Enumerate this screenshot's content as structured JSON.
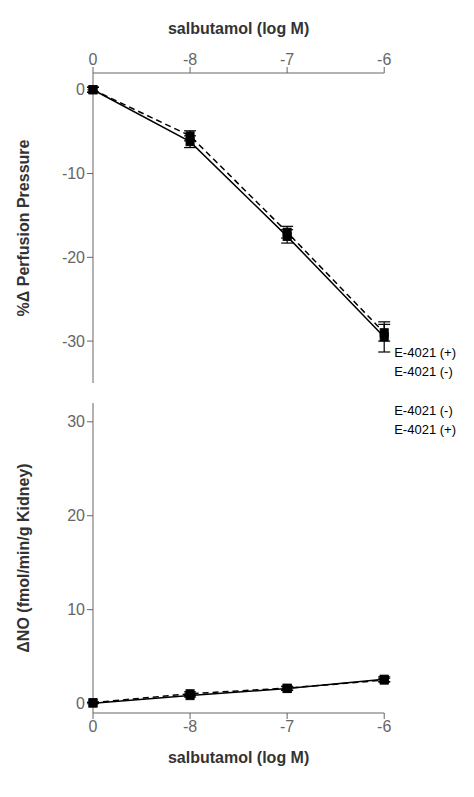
{
  "chart_data": [
    {
      "type": "line",
      "xlabel": "salbutamol (log M)",
      "ylabel": "%Δ Perfusion Pressure",
      "categories": [
        "0",
        "-8",
        "-7",
        "-6"
      ],
      "ylim": [
        -35,
        2
      ],
      "yticks": [
        0,
        -10,
        -20,
        -30
      ],
      "grid": false,
      "legend": "lower right",
      "series": [
        {
          "name": "E-4021 (+)",
          "color": "#000000",
          "line_style": "solid",
          "marker": "square",
          "values": [
            0,
            -6.2,
            -17.5,
            -29.5
          ],
          "yerr": [
            0.3,
            0.7,
            0.8,
            1.8
          ]
        },
        {
          "name": "E-4021 (-)",
          "color": "#000000",
          "line_style": "dashed",
          "marker": "square",
          "values": [
            0,
            -5.5,
            -17.0,
            -29.0
          ],
          "yerr": [
            0.3,
            0.6,
            0.7,
            1.0
          ]
        }
      ]
    },
    {
      "type": "line",
      "xlabel": "salbutamol (log M)",
      "ylabel": "ΔNO (fmol/min/g Kidney)",
      "categories": [
        "0",
        "-8",
        "-7",
        "-6"
      ],
      "ylim": [
        -1,
        32
      ],
      "yticks": [
        0,
        10,
        20,
        30
      ],
      "grid": false,
      "legend": "upper right",
      "series": [
        {
          "name": "E-4021 (-)",
          "color": "#000000",
          "line_style": "dashed",
          "marker": "square",
          "values": [
            0.1,
            1.05,
            1.65,
            2.5
          ],
          "yerr": [
            0.05,
            0.2,
            0.2,
            0.2
          ]
        },
        {
          "name": "E-4021 (+)",
          "color": "#000000",
          "line_style": "solid",
          "marker": "square",
          "values": [
            0.05,
            0.85,
            1.6,
            2.6
          ],
          "yerr": [
            0.05,
            0.15,
            0.2,
            0.25
          ]
        }
      ]
    }
  ]
}
